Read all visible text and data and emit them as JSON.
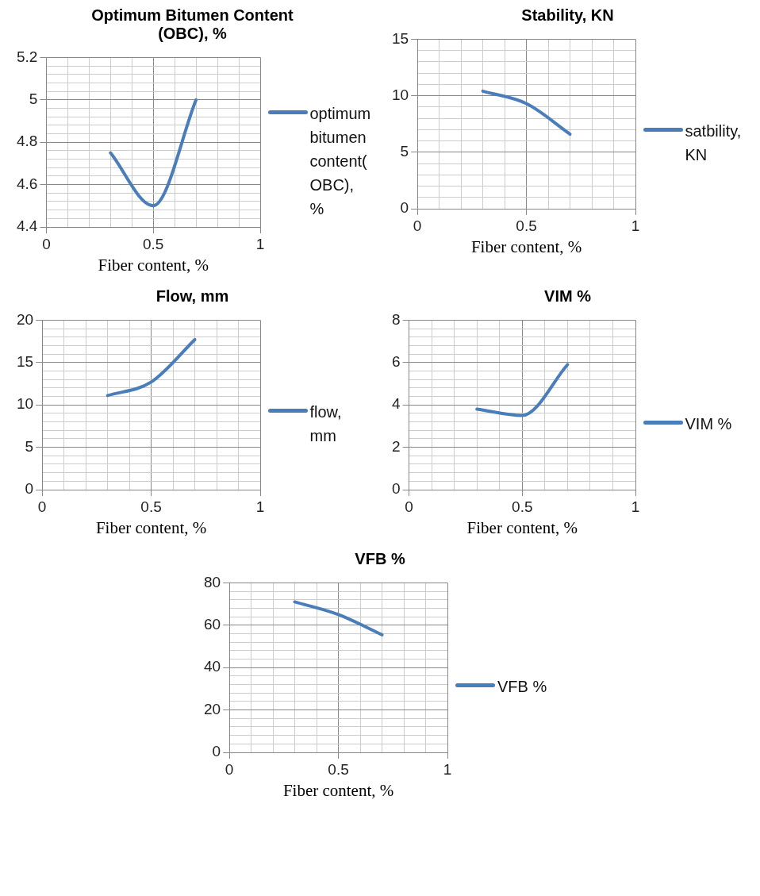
{
  "chart_data": [
    {
      "type": "line",
      "title": "Optimum Bitumen Content (OBC), %",
      "xlabel": "Fiber content, %",
      "x": [
        0.3,
        0.5,
        0.7
      ],
      "legend": "right",
      "grid": true,
      "series": [
        {
          "name": "optimum bitumen content(OBC), %",
          "color": "#4a7ebb",
          "values": [
            4.75,
            4.5,
            5.0
          ]
        }
      ],
      "xlim": [
        0,
        1
      ],
      "xticks": [
        0,
        {
          "value": 0.1,
          "label": null
        },
        {
          "value": 0.2,
          "label": null
        },
        {
          "value": 0.3,
          "label": null
        },
        {
          "value": 0.4,
          "label": null
        },
        0.5,
        {
          "value": 0.6,
          "label": null
        },
        {
          "value": 0.7,
          "label": null
        },
        {
          "value": 0.8,
          "label": null
        },
        {
          "value": 0.9,
          "label": null
        },
        1
      ],
      "ylim": [
        4.4,
        5.2
      ],
      "yticks": [
        4.4,
        {
          "value": 4.44,
          "label": null
        },
        {
          "value": 4.48,
          "label": null
        },
        {
          "value": 4.52,
          "label": null
        },
        {
          "value": 4.56,
          "label": null
        },
        4.6,
        {
          "value": 4.64,
          "label": null
        },
        {
          "value": 4.68,
          "label": null
        },
        {
          "value": 4.72,
          "label": null
        },
        {
          "value": 4.76,
          "label": null
        },
        4.8,
        {
          "value": 4.84,
          "label": null
        },
        {
          "value": 4.88,
          "label": null
        },
        {
          "value": 4.92,
          "label": null
        },
        {
          "value": 4.96,
          "label": null
        },
        5,
        {
          "value": 5.04,
          "label": null
        },
        {
          "value": 5.08,
          "label": null
        },
        {
          "value": 5.12,
          "label": null
        },
        {
          "value": 5.16,
          "label": null
        },
        5.2
      ]
    },
    {
      "type": "line",
      "title": "Stability, KN",
      "xlabel": "Fiber content, %",
      "x": [
        0.3,
        0.5,
        0.7
      ],
      "legend": "right",
      "grid": true,
      "series": [
        {
          "name": "satbility, KN",
          "color": "#4a7ebb",
          "values": [
            10.4,
            9.3,
            6.6
          ]
        }
      ],
      "xlim": [
        0,
        1
      ],
      "xticks": [
        0,
        {
          "value": 0.1,
          "label": null
        },
        {
          "value": 0.2,
          "label": null
        },
        {
          "value": 0.3,
          "label": null
        },
        {
          "value": 0.4,
          "label": null
        },
        0.5,
        {
          "value": 0.6,
          "label": null
        },
        {
          "value": 0.7,
          "label": null
        },
        {
          "value": 0.8,
          "label": null
        },
        {
          "value": 0.9,
          "label": null
        },
        1
      ],
      "ylim": [
        0,
        15
      ],
      "yticks": [
        0,
        {
          "value": 1,
          "label": null
        },
        {
          "value": 2,
          "label": null
        },
        {
          "value": 3,
          "label": null
        },
        {
          "value": 4,
          "label": null
        },
        5,
        {
          "value": 6,
          "label": null
        },
        {
          "value": 7,
          "label": null
        },
        {
          "value": 8,
          "label": null
        },
        {
          "value": 9,
          "label": null
        },
        10,
        {
          "value": 11,
          "label": null
        },
        {
          "value": 12,
          "label": null
        },
        {
          "value": 13,
          "label": null
        },
        {
          "value": 14,
          "label": null
        },
        15
      ]
    },
    {
      "type": "line",
      "title": "Flow, mm",
      "xlabel": "Fiber content, %",
      "x": [
        0.3,
        0.5,
        0.7
      ],
      "legend": "right",
      "grid": true,
      "series": [
        {
          "name": "flow, mm",
          "color": "#4a7ebb",
          "values": [
            11.1,
            12.7,
            17.7
          ]
        }
      ],
      "xlim": [
        0,
        1
      ],
      "xticks": [
        0,
        {
          "value": 0.1,
          "label": null
        },
        {
          "value": 0.2,
          "label": null
        },
        {
          "value": 0.3,
          "label": null
        },
        {
          "value": 0.4,
          "label": null
        },
        0.5,
        {
          "value": 0.6,
          "label": null
        },
        {
          "value": 0.7,
          "label": null
        },
        {
          "value": 0.8,
          "label": null
        },
        {
          "value": 0.9,
          "label": null
        },
        1
      ],
      "ylim": [
        0,
        20
      ],
      "yticks": [
        0,
        {
          "value": 1,
          "label": null
        },
        {
          "value": 2,
          "label": null
        },
        {
          "value": 3,
          "label": null
        },
        {
          "value": 4,
          "label": null
        },
        5,
        {
          "value": 6,
          "label": null
        },
        {
          "value": 7,
          "label": null
        },
        {
          "value": 8,
          "label": null
        },
        {
          "value": 9,
          "label": null
        },
        10,
        {
          "value": 11,
          "label": null
        },
        {
          "value": 12,
          "label": null
        },
        {
          "value": 13,
          "label": null
        },
        {
          "value": 14,
          "label": null
        },
        15,
        {
          "value": 16,
          "label": null
        },
        {
          "value": 17,
          "label": null
        },
        {
          "value": 18,
          "label": null
        },
        {
          "value": 19,
          "label": null
        },
        20
      ]
    },
    {
      "type": "line",
      "title": "VIM %",
      "xlabel": "Fiber content, %",
      "x": [
        0.3,
        0.5,
        0.7
      ],
      "legend": "right",
      "grid": true,
      "series": [
        {
          "name": "VIM %",
          "color": "#4a7ebb",
          "values": [
            3.8,
            3.5,
            5.9
          ]
        }
      ],
      "xlim": [
        0,
        1
      ],
      "xticks": [
        0,
        {
          "value": 0.1,
          "label": null
        },
        {
          "value": 0.2,
          "label": null
        },
        {
          "value": 0.3,
          "label": null
        },
        {
          "value": 0.4,
          "label": null
        },
        0.5,
        {
          "value": 0.6,
          "label": null
        },
        {
          "value": 0.7,
          "label": null
        },
        {
          "value": 0.8,
          "label": null
        },
        {
          "value": 0.9,
          "label": null
        },
        1
      ],
      "ylim": [
        0,
        8
      ],
      "yticks": [
        0,
        {
          "value": 0.4,
          "label": null
        },
        {
          "value": 0.8,
          "label": null
        },
        {
          "value": 1.2,
          "label": null
        },
        {
          "value": 1.6,
          "label": null
        },
        2,
        {
          "value": 2.4,
          "label": null
        },
        {
          "value": 2.8,
          "label": null
        },
        {
          "value": 3.2,
          "label": null
        },
        {
          "value": 3.6,
          "label": null
        },
        4,
        {
          "value": 4.4,
          "label": null
        },
        {
          "value": 4.8,
          "label": null
        },
        {
          "value": 5.2,
          "label": null
        },
        {
          "value": 5.6,
          "label": null
        },
        6,
        {
          "value": 6.4,
          "label": null
        },
        {
          "value": 6.8,
          "label": null
        },
        {
          "value": 7.2,
          "label": null
        },
        {
          "value": 7.6,
          "label": null
        },
        8
      ]
    },
    {
      "type": "line",
      "title": "VFB %",
      "xlabel": "Fiber content, %",
      "x": [
        0.3,
        0.5,
        0.7
      ],
      "legend": "right",
      "grid": true,
      "series": [
        {
          "name": "VFB %",
          "color": "#4a7ebb",
          "values": [
            71,
            65,
            55.5
          ]
        }
      ],
      "xlim": [
        0,
        1
      ],
      "xticks": [
        0,
        {
          "value": 0.1,
          "label": null
        },
        {
          "value": 0.2,
          "label": null
        },
        {
          "value": 0.3,
          "label": null
        },
        {
          "value": 0.4,
          "label": null
        },
        0.5,
        {
          "value": 0.6,
          "label": null
        },
        {
          "value": 0.7,
          "label": null
        },
        {
          "value": 0.8,
          "label": null
        },
        {
          "value": 0.9,
          "label": null
        },
        1
      ],
      "ylim": [
        0,
        80
      ],
      "yticks": [
        0,
        {
          "value": 4,
          "label": null
        },
        {
          "value": 8,
          "label": null
        },
        {
          "value": 12,
          "label": null
        },
        {
          "value": 16,
          "label": null
        },
        20,
        {
          "value": 24,
          "label": null
        },
        {
          "value": 28,
          "label": null
        },
        {
          "value": 32,
          "label": null
        },
        {
          "value": 36,
          "label": null
        },
        40,
        {
          "value": 44,
          "label": null
        },
        {
          "value": 48,
          "label": null
        },
        {
          "value": 52,
          "label": null
        },
        {
          "value": 56,
          "label": null
        },
        60,
        {
          "value": 64,
          "label": null
        },
        {
          "value": 68,
          "label": null
        },
        {
          "value": 72,
          "label": null
        },
        {
          "value": 76,
          "label": null
        },
        80
      ]
    }
  ]
}
